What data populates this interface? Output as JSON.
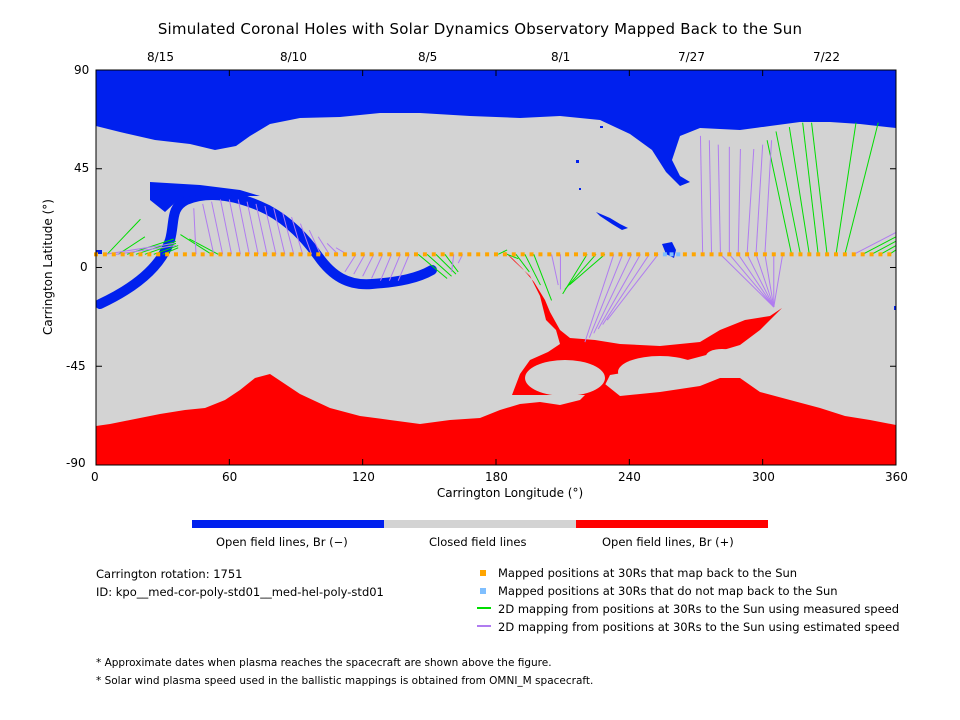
{
  "chart_data": {
    "type": "scatter",
    "title": "Simulated Coronal Holes with Solar Dynamics Observatory Mapped Back to the Sun",
    "xlabel": "Carrington Longitude (°)",
    "ylabel": "Carrington Latitude (°)",
    "xlim": [
      0,
      360
    ],
    "ylim": [
      -90,
      90
    ],
    "x_ticks": [
      "0",
      "60",
      "120",
      "180",
      "240",
      "300",
      "360"
    ],
    "y_ticks": [
      "90",
      "45",
      "0",
      "-45",
      "-90"
    ],
    "top_dates": [
      {
        "label": "8/15",
        "lon": 30
      },
      {
        "label": "8/10",
        "lon": 90
      },
      {
        "label": "8/5",
        "lon": 150
      },
      {
        "label": "8/1",
        "lon": 210
      },
      {
        "label": "7/27",
        "lon": 270
      },
      {
        "label": "7/22",
        "lon": 330
      }
    ],
    "grid": false,
    "colors": {
      "open_negative": "#0020ee",
      "closed": "#d3d3d3",
      "open_positive": "#ff0000",
      "mapped": "#ffa500",
      "unmapped": "#7fbfff",
      "measured": "#00dd00",
      "estimated": "#b07cf0"
    },
    "mapped_points": {
      "latitude": 6,
      "lon_ranges": [
        [
          0,
          255
        ],
        [
          265,
          360
        ]
      ],
      "spacing_deg": 4
    },
    "unmapped_points": {
      "latitude": 6,
      "lon": [
        256,
        259,
        262
      ]
    },
    "measured_mappings": [
      {
        "from": 0,
        "to": [
          0,
          13
        ]
      },
      {
        "from": 5,
        "to": [
          20,
          22
        ]
      },
      {
        "from": 10,
        "to": [
          22,
          14
        ]
      },
      {
        "from": 14,
        "to": [
          35,
          13
        ]
      },
      {
        "from": 18,
        "to": [
          36,
          12
        ]
      },
      {
        "from": 22,
        "to": [
          36,
          11
        ]
      },
      {
        "from": 26,
        "to": [
          37,
          10
        ]
      },
      {
        "from": 30,
        "to": [
          37,
          9
        ]
      },
      {
        "from": 52,
        "to": [
          38,
          15
        ]
      },
      {
        "from": 55,
        "to": [
          42,
          13
        ]
      },
      {
        "from": 145,
        "to": [
          158,
          -5
        ]
      },
      {
        "from": 149,
        "to": [
          160,
          -4
        ]
      },
      {
        "from": 153,
        "to": [
          162,
          -3
        ]
      },
      {
        "from": 157,
        "to": [
          163,
          -2
        ]
      },
      {
        "from": 181,
        "to": [
          185,
          8
        ]
      },
      {
        "from": 185,
        "to": [
          190,
          4
        ]
      },
      {
        "from": 189,
        "to": [
          195,
          -2
        ]
      },
      {
        "from": 193,
        "to": [
          200,
          -8
        ]
      },
      {
        "from": 197,
        "to": [
          205,
          -15
        ]
      },
      {
        "from": 221,
        "to": [
          210,
          -12
        ]
      },
      {
        "from": 225,
        "to": [
          211,
          -10
        ]
      },
      {
        "from": 229,
        "to": [
          213,
          -8
        ]
      },
      {
        "from": 313,
        "to": [
          302,
          58
        ]
      },
      {
        "from": 317,
        "to": [
          306,
          62
        ]
      },
      {
        "from": 321,
        "to": [
          312,
          64
        ]
      },
      {
        "from": 325,
        "to": [
          318,
          66
        ]
      },
      {
        "from": 329,
        "to": [
          322,
          66
        ]
      },
      {
        "from": 333,
        "to": [
          342,
          66
        ]
      },
      {
        "from": 337,
        "to": [
          352,
          66
        ]
      },
      {
        "from": 345,
        "to": [
          360,
          14
        ]
      },
      {
        "from": 349,
        "to": [
          360,
          12
        ]
      },
      {
        "from": 353,
        "to": [
          360,
          10
        ]
      },
      {
        "from": 357,
        "to": [
          360,
          8
        ]
      }
    ],
    "estimated_mappings": [
      {
        "from": 0,
        "to": [
          0,
          9
        ]
      },
      {
        "from": 4,
        "to": [
          35,
          11
        ]
      },
      {
        "from": 9,
        "to": [
          36,
          10
        ]
      },
      {
        "from": 45,
        "to": [
          44,
          27
        ]
      },
      {
        "from": 53,
        "to": [
          48,
          29
        ]
      },
      {
        "from": 57,
        "to": [
          52,
          30
        ]
      },
      {
        "from": 61,
        "to": [
          56,
          31
        ]
      },
      {
        "from": 65,
        "to": [
          60,
          31
        ]
      },
      {
        "from": 69,
        "to": [
          64,
          31
        ]
      },
      {
        "from": 73,
        "to": [
          68,
          30
        ]
      },
      {
        "from": 77,
        "to": [
          72,
          29
        ]
      },
      {
        "from": 81,
        "to": [
          76,
          28
        ]
      },
      {
        "from": 85,
        "to": [
          80,
          27
        ]
      },
      {
        "from": 89,
        "to": [
          84,
          25
        ]
      },
      {
        "from": 93,
        "to": [
          88,
          23
        ]
      },
      {
        "from": 97,
        "to": [
          92,
          20
        ]
      },
      {
        "from": 101,
        "to": [
          96,
          17
        ]
      },
      {
        "from": 105,
        "to": [
          100,
          14
        ]
      },
      {
        "from": 109,
        "to": [
          104,
          11
        ]
      },
      {
        "from": 113,
        "to": [
          108,
          9
        ]
      },
      {
        "from": 117,
        "to": [
          112,
          -2
        ]
      },
      {
        "from": 121,
        "to": [
          116,
          -3
        ]
      },
      {
        "from": 125,
        "to": [
          120,
          -4
        ]
      },
      {
        "from": 129,
        "to": [
          124,
          -5
        ]
      },
      {
        "from": 133,
        "to": [
          128,
          -6
        ]
      },
      {
        "from": 137,
        "to": [
          132,
          -6
        ]
      },
      {
        "from": 141,
        "to": [
          136,
          -6
        ]
      },
      {
        "from": 161,
        "to": [
          160,
          -2
        ]
      },
      {
        "from": 165,
        "to": [
          163,
          2
        ]
      },
      {
        "from": 205,
        "to": [
          208,
          -8
        ]
      },
      {
        "from": 209,
        "to": [
          209,
          -10
        ]
      },
      {
        "from": 233,
        "to": [
          220,
          -34
        ]
      },
      {
        "from": 237,
        "to": [
          222,
          -32
        ]
      },
      {
        "from": 241,
        "to": [
          224,
          -30
        ]
      },
      {
        "from": 245,
        "to": [
          226,
          -28
        ]
      },
      {
        "from": 249,
        "to": [
          228,
          -26
        ]
      },
      {
        "from": 253,
        "to": [
          230,
          -24
        ]
      },
      {
        "from": 281,
        "to": [
          305,
          -18
        ]
      },
      {
        "from": 285,
        "to": [
          305,
          -18
        ]
      },
      {
        "from": 289,
        "to": [
          305,
          -18
        ]
      },
      {
        "from": 293,
        "to": [
          305,
          -18
        ]
      },
      {
        "from": 297,
        "to": [
          305,
          -18
        ]
      },
      {
        "from": 301,
        "to": [
          305,
          -18
        ]
      },
      {
        "from": 305,
        "to": [
          305,
          -18
        ]
      },
      {
        "from": 309,
        "to": [
          305,
          -18
        ]
      },
      {
        "from": 273,
        "to": [
          272,
          60
        ]
      },
      {
        "from": 277,
        "to": [
          276,
          58
        ]
      },
      {
        "from": 281,
        "to": [
          280,
          56
        ]
      },
      {
        "from": 285,
        "to": [
          285,
          55
        ]
      },
      {
        "from": 289,
        "to": [
          290,
          54
        ]
      },
      {
        "from": 293,
        "to": [
          296,
          54
        ]
      },
      {
        "from": 297,
        "to": [
          300,
          56
        ]
      },
      {
        "from": 301,
        "to": [
          304,
          58
        ]
      },
      {
        "from": 341,
        "to": [
          360,
          16
        ]
      },
      {
        "from": 361,
        "to": [
          360,
          12
        ]
      }
    ]
  },
  "colorbar": {
    "labels": [
      "Open field lines, Br (−)",
      "Closed field lines",
      "Open field lines, Br (+)"
    ]
  },
  "info": {
    "rotation": "Carrington rotation: 1751",
    "id": "ID: kpo__med-cor-poly-std01__med-hel-poly-std01"
  },
  "legend": {
    "mapped": "Mapped positions at 30Rs that map back to the Sun",
    "unmapped": "Mapped positions at 30Rs that do not map back to the Sun",
    "measured": "2D mapping from positions at 30Rs to the Sun using measured speed",
    "estimated": "2D mapping from positions at 30Rs to the Sun using estimated speed"
  },
  "notes": [
    "* Approximate dates when plasma reaches the spacecraft are shown above the figure.",
    "* Solar wind plasma speed used in the ballistic mappings is obtained from OMNI_M spacecraft."
  ]
}
